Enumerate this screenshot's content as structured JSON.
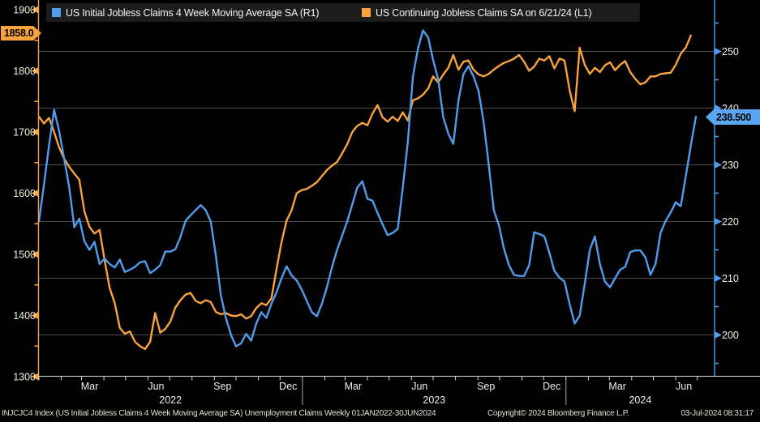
{
  "legend": {
    "series1_label": "US Initial Jobless Claims 4 Week Moving Average SA  (R1)",
    "series2_label": "US Continuing Jobless Claims SA  on 6/21/24 (L1)"
  },
  "badges": {
    "left_value": "1858.0",
    "right_value": "238.500"
  },
  "footer": {
    "left": "INJCJC4 Index (US Initial Jobless Claims 4 Week Moving Average SA) Unemployment Claims  Weekly 01JAN2022-30JUN2024",
    "center": "Copyright© 2024 Bloomberg Finance L.P.",
    "right": "03-Jul-2024 08:31:17"
  },
  "colors": {
    "blue": "#519ced",
    "orange": "#f8a33c",
    "grid": "#4c4c4c",
    "axis_text": "#f2f0e4",
    "bottom_axis": "#d8d8d8",
    "year_separator": "#a8a8a8"
  },
  "chart_data": {
    "type": "line",
    "x_range_label": "Weekly 01JAN2022-30JUN2024",
    "left_axis": {
      "ticks": [
        "1900",
        "1800",
        "1700",
        "1600",
        "1500",
        "1400",
        "1300"
      ],
      "last_value": 1858.0
    },
    "right_axis": {
      "ticks": [
        "250",
        "240",
        "230",
        "220",
        "210",
        "200"
      ],
      "last_value": 238.5
    },
    "x_axis": {
      "month_tick_labels": [
        "Mar",
        "Jun",
        "Sep",
        "Dec",
        "Mar",
        "Jun",
        "Sep",
        "Dec",
        "Mar",
        "Jun"
      ],
      "year_labels": [
        "2022",
        "2023",
        "2024"
      ]
    },
    "series": [
      {
        "name": "US Initial Jobless Claims 4 Week Moving Average SA",
        "axis": "R1",
        "color": "#519ced",
        "start_date": "2022-01-01",
        "interval_days": 7,
        "values": [
          220.0,
          226.5,
          233.5,
          239.7,
          236.0,
          231.0,
          226.0,
          219.0,
          220.5,
          216.5,
          215.0,
          216.4,
          212.5,
          213.5,
          212.5,
          211.9,
          213.3,
          211.1,
          211.5,
          212.0,
          212.8,
          213.0,
          210.9,
          211.5,
          212.3,
          214.7,
          214.7,
          215.1,
          217.3,
          220.1,
          221.1,
          222.0,
          222.9,
          222.0,
          220.0,
          214.0,
          207.0,
          203.0,
          200.0,
          198.0,
          198.5,
          200.2,
          199.0,
          202.0,
          204.0,
          203.0,
          205.5,
          207.5,
          210.0,
          212.1,
          210.5,
          209.6,
          208.0,
          206.0,
          204.0,
          203.3,
          205.5,
          208.5,
          212.0,
          215.0,
          217.5,
          220.0,
          223.0,
          226.0,
          227.1,
          224.0,
          223.7,
          221.5,
          219.5,
          217.6,
          218.0,
          218.7,
          226.0,
          234.0,
          245.6,
          250.5,
          253.7,
          252.5,
          248.5,
          245.1,
          238.4,
          235.5,
          233.7,
          241.3,
          246.0,
          247.4,
          245.6,
          243.0,
          237.5,
          230.1,
          222.0,
          219.4,
          215.3,
          212.3,
          210.6,
          210.4,
          210.4,
          212.3,
          218.1,
          217.8,
          217.4,
          214.5,
          211.3,
          210.1,
          209.4,
          205.5,
          202.0,
          203.4,
          209.0,
          215.0,
          217.4,
          212.5,
          209.4,
          208.4,
          210.0,
          211.5,
          212.0,
          214.6,
          214.9,
          214.9,
          213.7,
          210.6,
          212.5,
          218.0,
          220.1,
          221.6,
          223.4,
          222.7,
          228.0,
          233.5,
          238.5
        ]
      },
      {
        "name": "US Continuing Jobless Claims SA",
        "axis": "L1",
        "color": "#f8a33c",
        "start_date": "2022-01-01",
        "interval_days": 7,
        "values": [
          1725,
          1714,
          1723,
          1700,
          1675,
          1656,
          1643,
          1632,
          1622,
          1570,
          1545,
          1534,
          1540,
          1490,
          1445,
          1420,
          1380,
          1370,
          1374,
          1357,
          1350,
          1345,
          1357,
          1404,
          1372,
          1378,
          1390,
          1413,
          1425,
          1434,
          1437,
          1424,
          1420,
          1425,
          1422,
          1406,
          1402,
          1404,
          1400,
          1399,
          1402,
          1395,
          1399,
          1412,
          1420,
          1417,
          1428,
          1475,
          1520,
          1555,
          1572,
          1600,
          1605,
          1607,
          1612,
          1618,
          1628,
          1638,
          1645,
          1651,
          1665,
          1680,
          1700,
          1710,
          1715,
          1711,
          1730,
          1744,
          1724,
          1717,
          1725,
          1718,
          1732,
          1719,
          1752,
          1755,
          1761,
          1771,
          1791,
          1781,
          1794,
          1805,
          1826,
          1802,
          1815,
          1817,
          1802,
          1794,
          1791,
          1795,
          1802,
          1808,
          1813,
          1816,
          1820,
          1826,
          1815,
          1800,
          1807,
          1820,
          1817,
          1824,
          1804,
          1820,
          1817,
          1769,
          1734,
          1838,
          1810,
          1795,
          1805,
          1798,
          1809,
          1814,
          1801,
          1810,
          1816,
          1798,
          1787,
          1778,
          1781,
          1791,
          1791,
          1795,
          1796,
          1797,
          1810,
          1828,
          1838,
          1858
        ]
      }
    ]
  }
}
